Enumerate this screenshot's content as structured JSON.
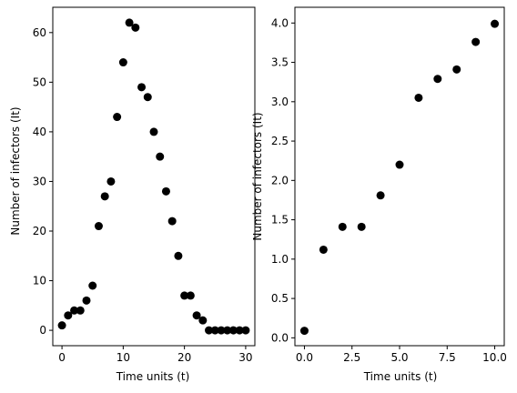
{
  "chart_data": [
    {
      "type": "scatter",
      "xlabel": "Time units (t)",
      "ylabel": "Number of infectors (It)",
      "xlim": [
        -1.5,
        31.5
      ],
      "ylim": [
        -3.1,
        65.1
      ],
      "xticks": [
        "0",
        "10",
        "20",
        "30"
      ],
      "yticks": [
        "0",
        "10",
        "20",
        "30",
        "40",
        "50",
        "60"
      ],
      "grid": false,
      "marker_color": "#000000",
      "x": [
        0,
        1,
        2,
        3,
        4,
        5,
        6,
        7,
        8,
        9,
        10,
        11,
        12,
        13,
        14,
        15,
        16,
        17,
        18,
        19,
        20,
        21,
        22,
        23,
        24,
        25,
        26,
        27,
        28,
        29,
        30
      ],
      "y": [
        1,
        3,
        4,
        4,
        6,
        9,
        21,
        27,
        30,
        43,
        54,
        62,
        61,
        49,
        47,
        40,
        35,
        28,
        22,
        15,
        7,
        7,
        3,
        2,
        0,
        0,
        0,
        0,
        0,
        0,
        0
      ]
    },
    {
      "type": "scatter",
      "xlabel": "Time units (t)",
      "ylabel": "Number of infectors (It)",
      "xlim": [
        -0.5,
        10.5
      ],
      "ylim": [
        -0.1,
        4.2
      ],
      "xticks": [
        "0.0",
        "2.5",
        "5.0",
        "7.5",
        "10.0"
      ],
      "yticks": [
        "0.0",
        "0.5",
        "1.0",
        "1.5",
        "2.0",
        "2.5",
        "3.0",
        "3.5",
        "4.0"
      ],
      "grid": false,
      "marker_color": "#000000",
      "x": [
        0,
        1,
        2,
        3,
        4,
        5,
        6,
        7,
        8,
        9,
        10
      ],
      "y": [
        0.09,
        1.12,
        1.41,
        1.41,
        1.81,
        2.2,
        3.05,
        3.29,
        3.41,
        3.76,
        3.99
      ]
    }
  ]
}
